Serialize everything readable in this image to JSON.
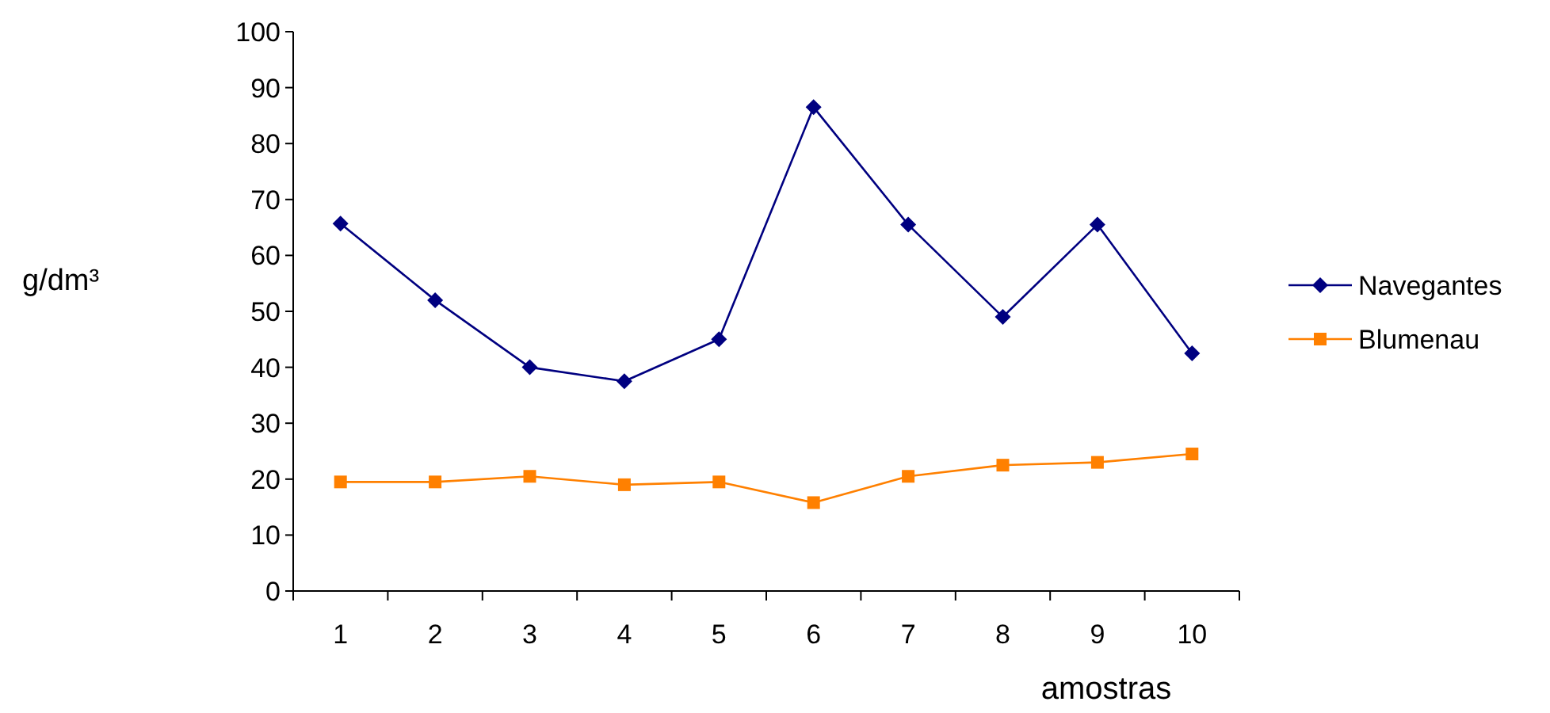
{
  "chart_data": {
    "type": "line",
    "xlabel": "amostras",
    "ylabel": "g/dm³",
    "categories": [
      "1",
      "2",
      "3",
      "4",
      "5",
      "6",
      "7",
      "8",
      "9",
      "10"
    ],
    "series": [
      {
        "name": "Navegantes",
        "color": "#000080",
        "marker": "diamond",
        "values": [
          65.7,
          52,
          40,
          37.5,
          45,
          86.5,
          65.5,
          49,
          65.5,
          42.5
        ]
      },
      {
        "name": "Blumenau",
        "color": "#ff8000",
        "marker": "square",
        "values": [
          19.5,
          19.5,
          20.5,
          19,
          19.5,
          15.8,
          20.5,
          22.5,
          23,
          24.5
        ]
      }
    ],
    "ylim": [
      0,
      100
    ],
    "yticks": [
      0,
      10,
      20,
      30,
      40,
      50,
      60,
      70,
      80,
      90,
      100
    ],
    "grid": false,
    "legend": "right"
  }
}
